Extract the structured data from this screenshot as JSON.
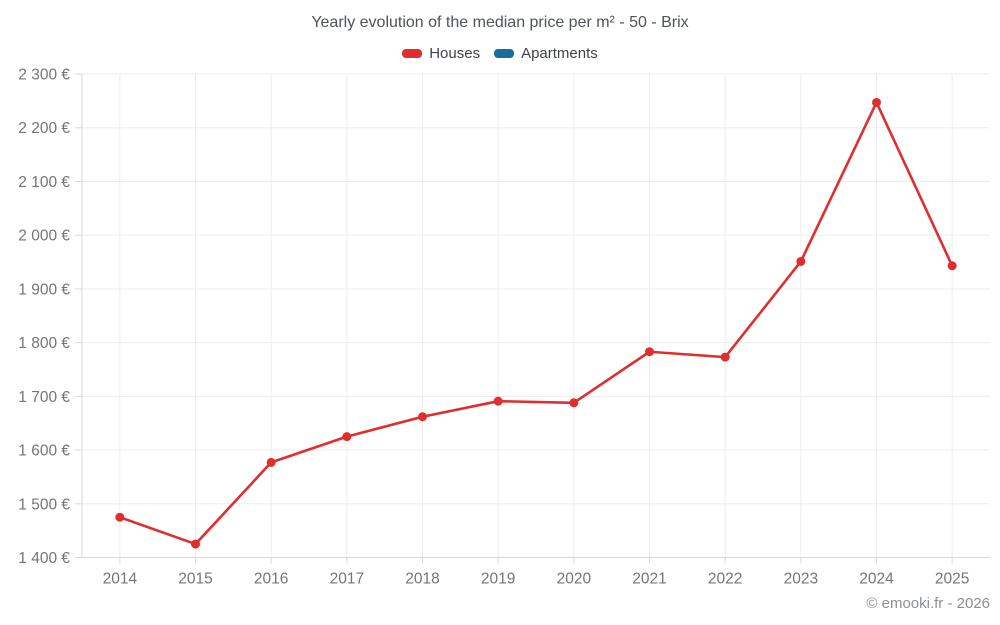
{
  "chart_data": {
    "type": "line",
    "title": "Yearly evolution of the median price per m² - 50 - Brix",
    "categories": [
      "2014",
      "2015",
      "2016",
      "2017",
      "2018",
      "2019",
      "2020",
      "2021",
      "2022",
      "2023",
      "2024",
      "2025"
    ],
    "series": [
      {
        "name": "Houses",
        "color": "#e02e2e",
        "values": [
          1475,
          1425,
          1577,
          1625,
          1662,
          1691,
          1688,
          1783,
          1773,
          1951,
          2247,
          1943
        ]
      },
      {
        "name": "Apartments",
        "color": "#1a6d9b",
        "values": []
      }
    ],
    "ylabel": "",
    "xlabel": "",
    "ylim": [
      1400,
      2300
    ],
    "y_tick_step": 100,
    "y_tick_suffix": " €",
    "grid": true,
    "legend_position": "top"
  },
  "footer": {
    "text": "© emooki.fr - 2026"
  },
  "style": {
    "grid_color": "#ededed",
    "axis_color": "#d9d9d9",
    "tick_label_color": "#757575"
  }
}
